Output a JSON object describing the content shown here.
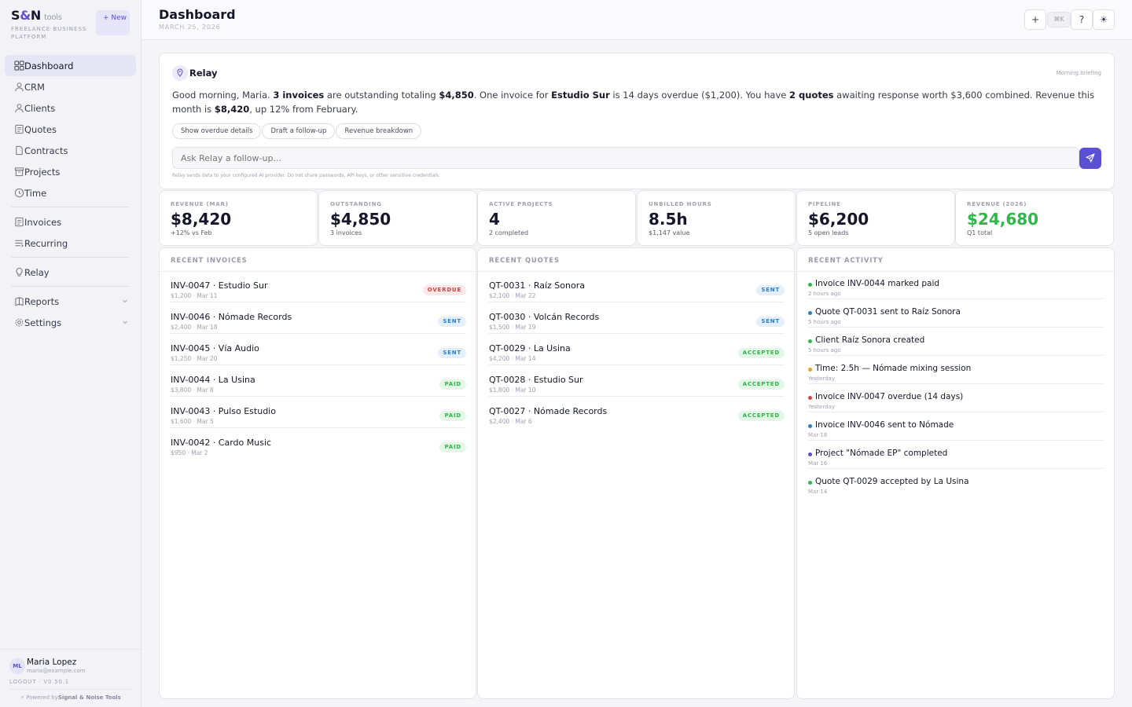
{
  "brand": {
    "name_left": "S",
    "name_amp": "&",
    "name_right": "N",
    "tools": "tools",
    "subtitle": "FREELANCE BUSINESS PLATFORM",
    "new_label": "+ New"
  },
  "nav": {
    "items": [
      {
        "label": "Dashboard",
        "icon": "dashboard-icon"
      },
      {
        "label": "CRM",
        "icon": "user-icon"
      },
      {
        "label": "Clients",
        "icon": "client-icon"
      },
      {
        "label": "Quotes",
        "icon": "quote-icon"
      },
      {
        "label": "Contracts",
        "icon": "contract-icon"
      },
      {
        "label": "Projects",
        "icon": "projects-icon"
      },
      {
        "label": "Time",
        "icon": "clock-icon"
      },
      {
        "label": "Invoices",
        "icon": "invoice-icon"
      },
      {
        "label": "Recurring",
        "icon": "recurring-icon"
      },
      {
        "label": "Relay",
        "icon": "relay-icon"
      },
      {
        "label": "Reports",
        "icon": "reports-icon"
      },
      {
        "label": "Settings",
        "icon": "gear-icon"
      }
    ]
  },
  "user": {
    "initials": "ML",
    "name": "Maria Lopez",
    "email": "maria@example.com",
    "meta": "LOGOUT · V0.50.1",
    "powered_prefix": "⚡ Powered by",
    "powered_name": "Signal & Noise Tools"
  },
  "header": {
    "title": "Dashboard",
    "date": "MARCH 25, 2026",
    "add_label": "+",
    "kbd_label": "⌘K",
    "help_label": "?",
    "theme_label": "☀"
  },
  "relay": {
    "title": "Relay",
    "tag": "Morning briefing",
    "briefing": {
      "p1": "Good morning, Maria. ",
      "b1": "3 invoices",
      "p2": " are outstanding totaling ",
      "b2": "$4,850",
      "p3": ". One invoice for ",
      "b3": "Estudio Sur",
      "p4": " is 14 days overdue ($1,200). You have ",
      "b4": "2 quotes",
      "p5": " awaiting response worth $3,600 combined. Revenue this month is ",
      "b5": "$8,420",
      "p6": ", up 12% from February."
    },
    "chips": [
      "Show overdue details",
      "Draft a follow-up",
      "Revenue breakdown"
    ],
    "placeholder": "Ask Relay a follow-up...",
    "disclaimer": "Relay sends data to your configured AI provider. Do not share passwords, API keys, or other sensitive credentials."
  },
  "stats": [
    {
      "label": "REVENUE (MAR)",
      "value": "$8,420",
      "sub": "+12% vs Feb",
      "color": "#16162a"
    },
    {
      "label": "OUTSTANDING",
      "value": "$4,850",
      "sub": "3 invoices",
      "color": "#16162a"
    },
    {
      "label": "ACTIVE PROJECTS",
      "value": "4",
      "sub": "2 completed",
      "color": "#16162a"
    },
    {
      "label": "UNBILLED HOURS",
      "value": "8.5h",
      "sub": "$1,147 value",
      "color": "#16162a"
    },
    {
      "label": "PIPELINE",
      "value": "$6,200",
      "sub": "5 open leads",
      "color": "#16162a"
    },
    {
      "label": "REVENUE (2026)",
      "value": "$24,680",
      "sub": "Q1 total",
      "color": "#2eb84a"
    }
  ],
  "invoices": {
    "heading": "RECENT INVOICES",
    "rows": [
      {
        "title": "INV-0047 · Estudio Sur",
        "sub": "$1,200 · Mar 11",
        "status": "OVERDUE"
      },
      {
        "title": "INV-0046 · Nómade Records",
        "sub": "$2,400 · Mar 18",
        "status": "SENT"
      },
      {
        "title": "INV-0045 · Vía Audio",
        "sub": "$1,250 · Mar 20",
        "status": "SENT"
      },
      {
        "title": "INV-0044 · La Usina",
        "sub": "$3,800 · Mar 8",
        "status": "PAID"
      },
      {
        "title": "INV-0043 · Pulso Estudio",
        "sub": "$1,600 · Mar 5",
        "status": "PAID"
      },
      {
        "title": "INV-0042 · Cardo Music",
        "sub": "$950 · Mar 2",
        "status": "PAID"
      }
    ]
  },
  "quotes": {
    "heading": "RECENT QUOTES",
    "rows": [
      {
        "title": "QT-0031 · Raíz Sonora",
        "sub": "$2,100 · Mar 22",
        "status": "SENT"
      },
      {
        "title": "QT-0030 · Volcán Records",
        "sub": "$1,500 · Mar 19",
        "status": "SENT"
      },
      {
        "title": "QT-0029 · La Usina",
        "sub": "$4,200 · Mar 14",
        "status": "ACCEPTED"
      },
      {
        "title": "QT-0028 · Estudio Sur",
        "sub": "$1,800 · Mar 10",
        "status": "ACCEPTED"
      },
      {
        "title": "QT-0027 · Nómade Records",
        "sub": "$2,400 · Mar 6",
        "status": "ACCEPTED"
      }
    ]
  },
  "activity": {
    "heading": "RECENT ACTIVITY",
    "rows": [
      {
        "text": "Invoice INV-0044 marked paid",
        "time": "2 hours ago",
        "color": "#2eb84a"
      },
      {
        "text": "Quote QT-0031 sent to Raíz Sonora",
        "time": "5 hours ago",
        "color": "#2a7fcc"
      },
      {
        "text": "Client Raíz Sonora created",
        "time": "5 hours ago",
        "color": "#2eb84a"
      },
      {
        "text": "Time: 2.5h — Nómade mixing session",
        "time": "Yesterday",
        "color": "#f0a020"
      },
      {
        "text": "Invoice INV-0047 overdue (14 days)",
        "time": "Yesterday",
        "color": "#e04040"
      },
      {
        "text": "Invoice INV-0046 sent to Nómade",
        "time": "Mar 18",
        "color": "#2a7fcc"
      },
      {
        "text": "Project \"Nómade EP\" completed",
        "time": "Mar 16",
        "color": "#5b4fd6"
      },
      {
        "text": "Quote QT-0029 accepted by La Usina",
        "time": "Mar 14",
        "color": "#2eb84a"
      }
    ]
  }
}
